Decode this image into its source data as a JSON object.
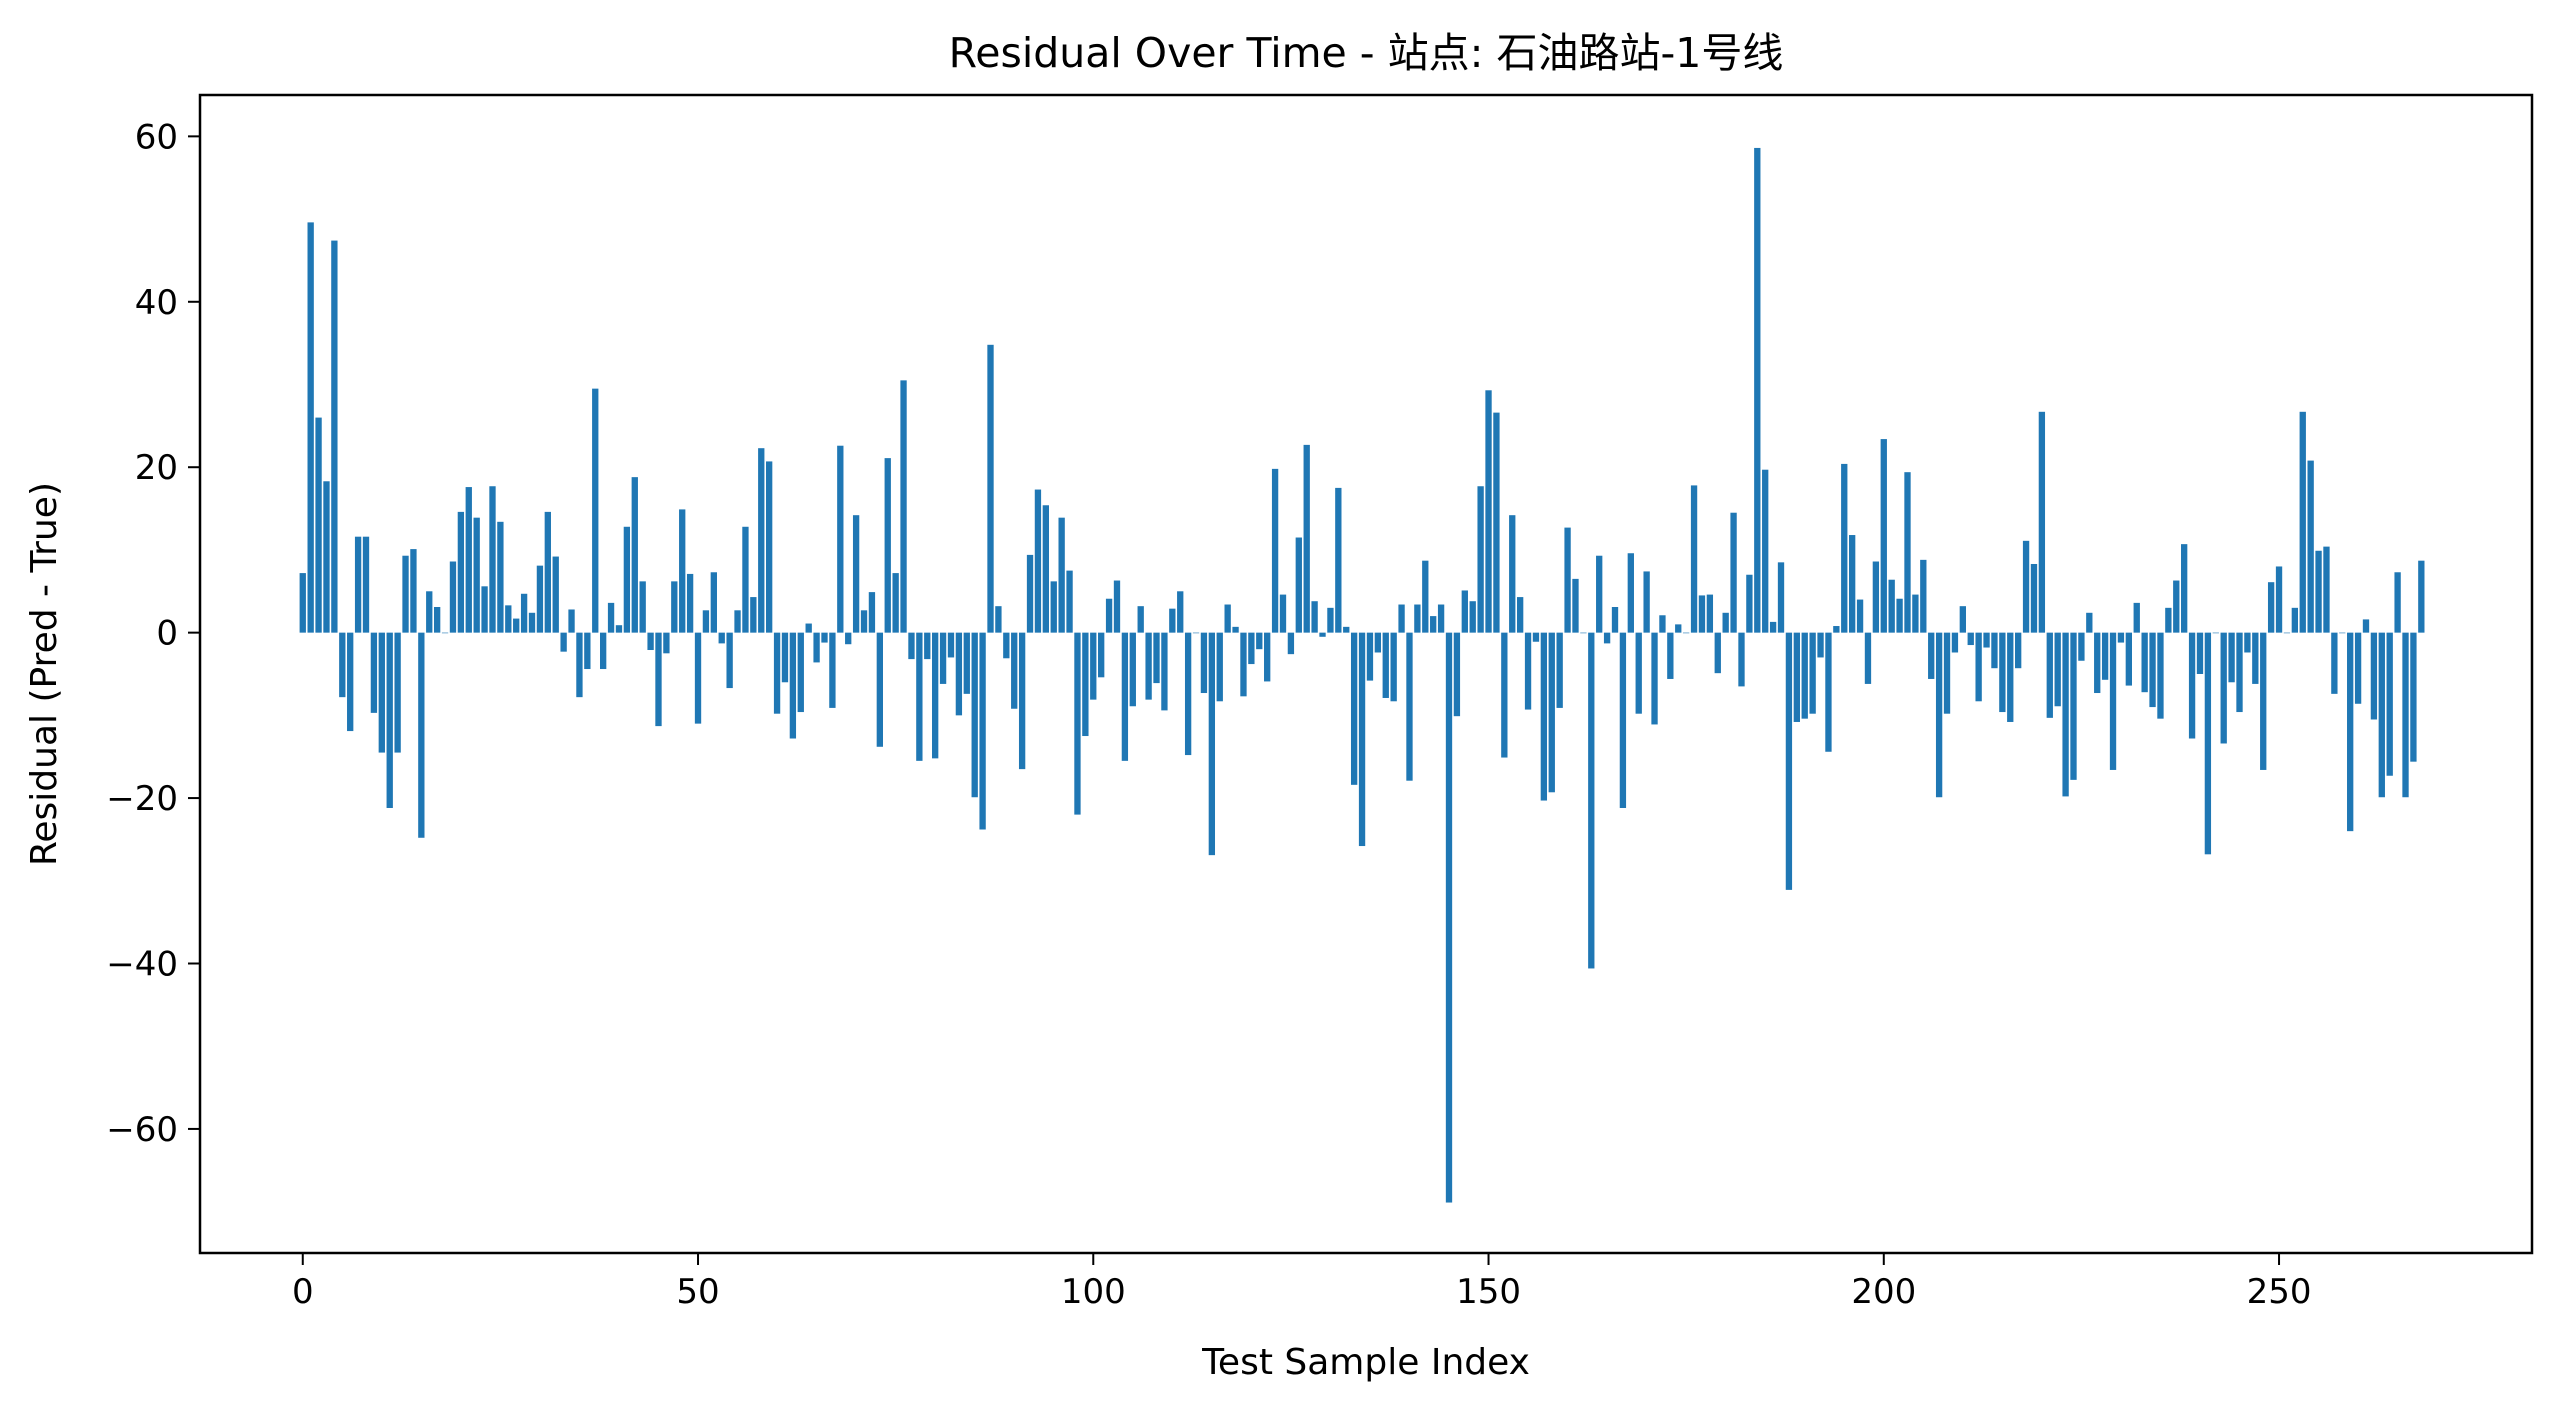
{
  "chart_data": {
    "type": "bar",
    "title": "Residual Over Time - 站点: 石油路站-1号线",
    "xlabel": "Test Sample Index",
    "ylabel": "Residual (Pred - True)",
    "xlim": [
      -13,
      282
    ],
    "ylim": [
      -75,
      65
    ],
    "xticks": [
      0,
      50,
      100,
      150,
      200,
      250
    ],
    "xtick_labels": [
      "0",
      "50",
      "100",
      "150",
      "200",
      "250"
    ],
    "yticks": [
      -60,
      -40,
      -20,
      0,
      20,
      40,
      60
    ],
    "ytick_labels": [
      "−60",
      "−40",
      "−20",
      "0",
      "20",
      "40",
      "60"
    ],
    "bar_color": "#1f77b4",
    "grid": false,
    "legend": false,
    "x": [
      0,
      1,
      2,
      3,
      4,
      5,
      6,
      7,
      8,
      9,
      10,
      11,
      12,
      13,
      14,
      15,
      16,
      17,
      18,
      19,
      20,
      21,
      22,
      23,
      24,
      25,
      26,
      27,
      28,
      29,
      30,
      31,
      32,
      33,
      34,
      35,
      36,
      37,
      38,
      39,
      40,
      41,
      42,
      43,
      44,
      45,
      46,
      47,
      48,
      49,
      50,
      51,
      52,
      53,
      54,
      55,
      56,
      57,
      58,
      59,
      60,
      61,
      62,
      63,
      64,
      65,
      66,
      67,
      68,
      69,
      70,
      71,
      72,
      73,
      74,
      75,
      76,
      77,
      78,
      79,
      80,
      81,
      82,
      83,
      84,
      85,
      86,
      87,
      88,
      89,
      90,
      91,
      92,
      93,
      94,
      95,
      96,
      97,
      98,
      99,
      100,
      101,
      102,
      103,
      104,
      105,
      106,
      107,
      108,
      109,
      110,
      111,
      112,
      113,
      114,
      115,
      116,
      117,
      118,
      119,
      120,
      121,
      122,
      123,
      124,
      125,
      126,
      127,
      128,
      129,
      130,
      131,
      132,
      133,
      134,
      135,
      136,
      137,
      138,
      139,
      140,
      141,
      142,
      143,
      144,
      145,
      146,
      147,
      148,
      149,
      150,
      151,
      152,
      153,
      154,
      155,
      156,
      157,
      158,
      159,
      160,
      161,
      162,
      163,
      164,
      165,
      166,
      167,
      168,
      169,
      170,
      171,
      172,
      173,
      174,
      175,
      176,
      177,
      178,
      179,
      180,
      181,
      182,
      183,
      184,
      185,
      186,
      187,
      188,
      189,
      190,
      191,
      192,
      193,
      194,
      195,
      196,
      197,
      198,
      199,
      200,
      201,
      202,
      203,
      204,
      205,
      206,
      207,
      208,
      209,
      210,
      211,
      212,
      213,
      214,
      215,
      216,
      217,
      218,
      219,
      220,
      221,
      222,
      223,
      224,
      225,
      226,
      227,
      228,
      229,
      230,
      231,
      232,
      233,
      234,
      235,
      236,
      237,
      238,
      239,
      240,
      241,
      242,
      243,
      244,
      245,
      246,
      247,
      248,
      249,
      250,
      251,
      252,
      253,
      254,
      255,
      256,
      257,
      258,
      259,
      260,
      261,
      262,
      263,
      264,
      265,
      266,
      267,
      268
    ],
    "values": [
      7.2,
      49.6,
      26.0,
      18.3,
      47.4,
      -7.8,
      -11.9,
      11.6,
      11.6,
      -9.7,
      -14.5,
      -21.2,
      -14.5,
      9.3,
      10.1,
      -24.8,
      5.0,
      3.1,
      0.0,
      8.6,
      14.6,
      17.6,
      13.9,
      5.6,
      17.7,
      13.4,
      3.3,
      1.7,
      4.7,
      2.4,
      8.1,
      14.6,
      9.2,
      -2.3,
      2.8,
      -7.8,
      -4.4,
      29.5,
      -4.4,
      3.6,
      0.9,
      12.8,
      18.8,
      6.2,
      -2.1,
      -11.3,
      -2.5,
      6.2,
      14.9,
      7.1,
      -11.0,
      2.7,
      7.3,
      -1.3,
      -6.7,
      2.7,
      12.8,
      4.3,
      22.3,
      20.7,
      -9.8,
      -6.0,
      -12.8,
      -9.6,
      1.1,
      -3.6,
      -1.2,
      -9.1,
      22.6,
      -1.4,
      14.2,
      2.7,
      4.9,
      -13.8,
      21.1,
      7.2,
      30.5,
      -3.2,
      -15.5,
      -3.2,
      -15.2,
      -6.2,
      -3.0,
      -10.0,
      -7.4,
      -19.9,
      -23.8,
      34.8,
      3.2,
      -3.1,
      -9.2,
      -16.5,
      9.4,
      17.3,
      15.4,
      6.2,
      13.9,
      7.5,
      -22.0,
      -12.5,
      -8.1,
      -5.4,
      4.1,
      6.3,
      -15.5,
      -8.9,
      3.2,
      -8.1,
      -6.1,
      -9.4,
      2.9,
      5.0,
      -14.8,
      0.0,
      -7.3,
      -26.9,
      -8.3,
      3.4,
      0.7,
      -7.7,
      -3.8,
      -2.0,
      -5.9,
      19.8,
      4.6,
      -2.6,
      11.5,
      22.7,
      3.8,
      -0.5,
      3.0,
      17.5,
      0.7,
      -18.4,
      -25.8,
      -5.8,
      -2.4,
      -7.9,
      -8.3,
      3.4,
      -17.9,
      3.4,
      8.7,
      2.0,
      3.4,
      -68.9,
      -10.1,
      5.1,
      3.8,
      17.7,
      29.3,
      26.6,
      -15.1,
      14.2,
      4.3,
      -9.3,
      -1.1,
      -20.3,
      -19.3,
      -9.1,
      12.7,
      6.5,
      0.0,
      -40.6,
      9.3,
      -1.3,
      3.1,
      -21.2,
      9.6,
      -9.8,
      7.4,
      -11.1,
      2.1,
      -5.6,
      1.0,
      0.0,
      17.8,
      4.5,
      4.6,
      -4.9,
      2.4,
      14.5,
      -6.5,
      7.0,
      58.6,
      19.7,
      1.3,
      8.5,
      -31.1,
      -10.8,
      -10.4,
      -9.8,
      -3.0,
      -14.4,
      0.8,
      20.4,
      11.8,
      4.0,
      -6.2,
      8.6,
      23.4,
      6.4,
      4.1,
      19.4,
      4.6,
      8.8,
      -5.6,
      -19.9,
      -9.8,
      -2.4,
      3.2,
      -1.5,
      -8.3,
      -1.8,
      -4.3,
      -9.6,
      -10.8,
      -4.3,
      11.1,
      8.3,
      26.7,
      -10.3,
      -8.9,
      -19.8,
      -17.8,
      -3.4,
      2.4,
      -7.3,
      -5.7,
      -16.6,
      -1.2,
      -6.4,
      3.6,
      -7.2,
      -9.0,
      -10.4,
      3.0,
      6.3,
      10.7,
      -12.8,
      -5.0,
      -26.8,
      0.0,
      -13.4,
      -6.0,
      -9.6,
      -2.4,
      -6.2,
      -16.6,
      6.1,
      8.0,
      0.0,
      3.0,
      26.7,
      20.8,
      9.9,
      10.4,
      -7.4,
      0.0,
      -24.0,
      -8.6,
      1.6,
      -10.5,
      -19.9,
      -17.3,
      7.3,
      -19.9,
      -15.6,
      8.7
    ]
  }
}
